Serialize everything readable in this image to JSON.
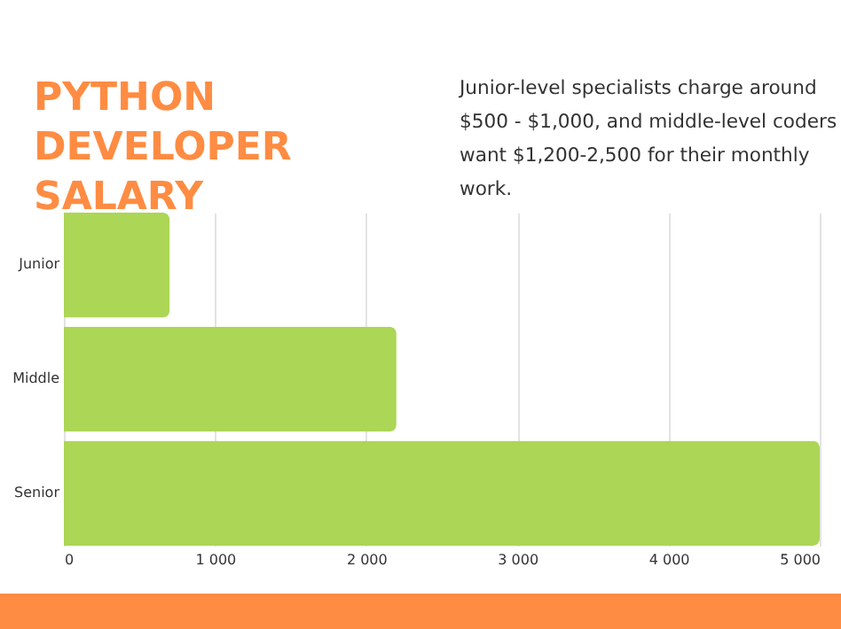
{
  "chart_data": {
    "type": "bar",
    "orientation": "horizontal",
    "title": "PYTHON DEVELOPER SALARY",
    "subtitle": "Junior-level specialists charge around $500 - $1,000, and middle-level coders want $1,200-2,500 for their monthly work.",
    "categories": [
      "Junior",
      "Middle",
      "Senior"
    ],
    "values": [
      700,
      2200,
      5000
    ],
    "color": "#acd656",
    "xlim": [
      0,
      5000
    ],
    "xticks": [
      0,
      {
        "value": 1000,
        "label": "1 000"
      },
      {
        "value": 2000,
        "label": "2 000"
      },
      {
        "value": 3000,
        "label": "3 000"
      },
      {
        "value": 4000,
        "label": "4 000"
      },
      {
        "value": 5000,
        "label": "5 000"
      }
    ],
    "grid": "x"
  }
}
